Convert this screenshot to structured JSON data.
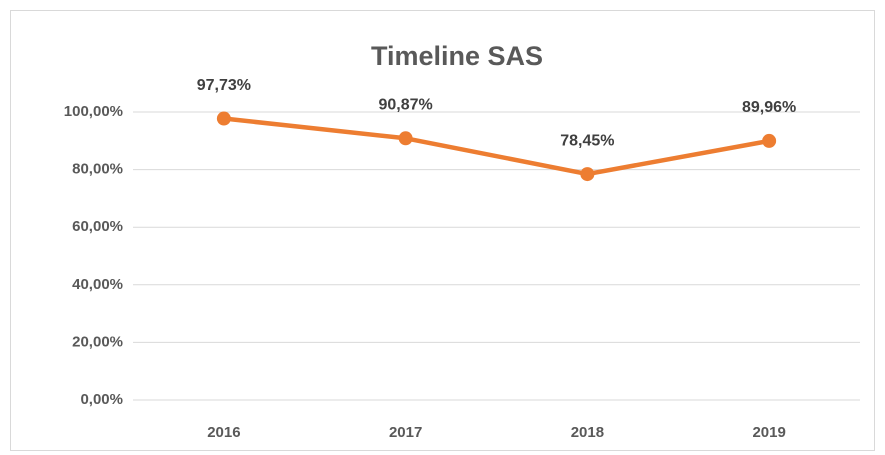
{
  "chart_data": {
    "type": "line",
    "title": "Timeline SAS",
    "categories": [
      "2016",
      "2017",
      "2018",
      "2019"
    ],
    "series": [
      {
        "name": "SAS",
        "color": "#ed7d31",
        "values": [
          97.73,
          90.87,
          78.45,
          89.96
        ],
        "value_labels": [
          "97,73%",
          "90,87%",
          "78,45%",
          "89,96%"
        ]
      }
    ],
    "ylim": [
      0,
      100
    ],
    "yticks": [
      {
        "value": 0,
        "label": "0,00%"
      },
      {
        "value": 20,
        "label": "20,00%"
      },
      {
        "value": 40,
        "label": "40,00%"
      },
      {
        "value": 60,
        "label": "60,00%"
      },
      {
        "value": 80,
        "label": "80,00%"
      },
      {
        "value": 100,
        "label": "100,00%"
      }
    ],
    "grid": true
  }
}
